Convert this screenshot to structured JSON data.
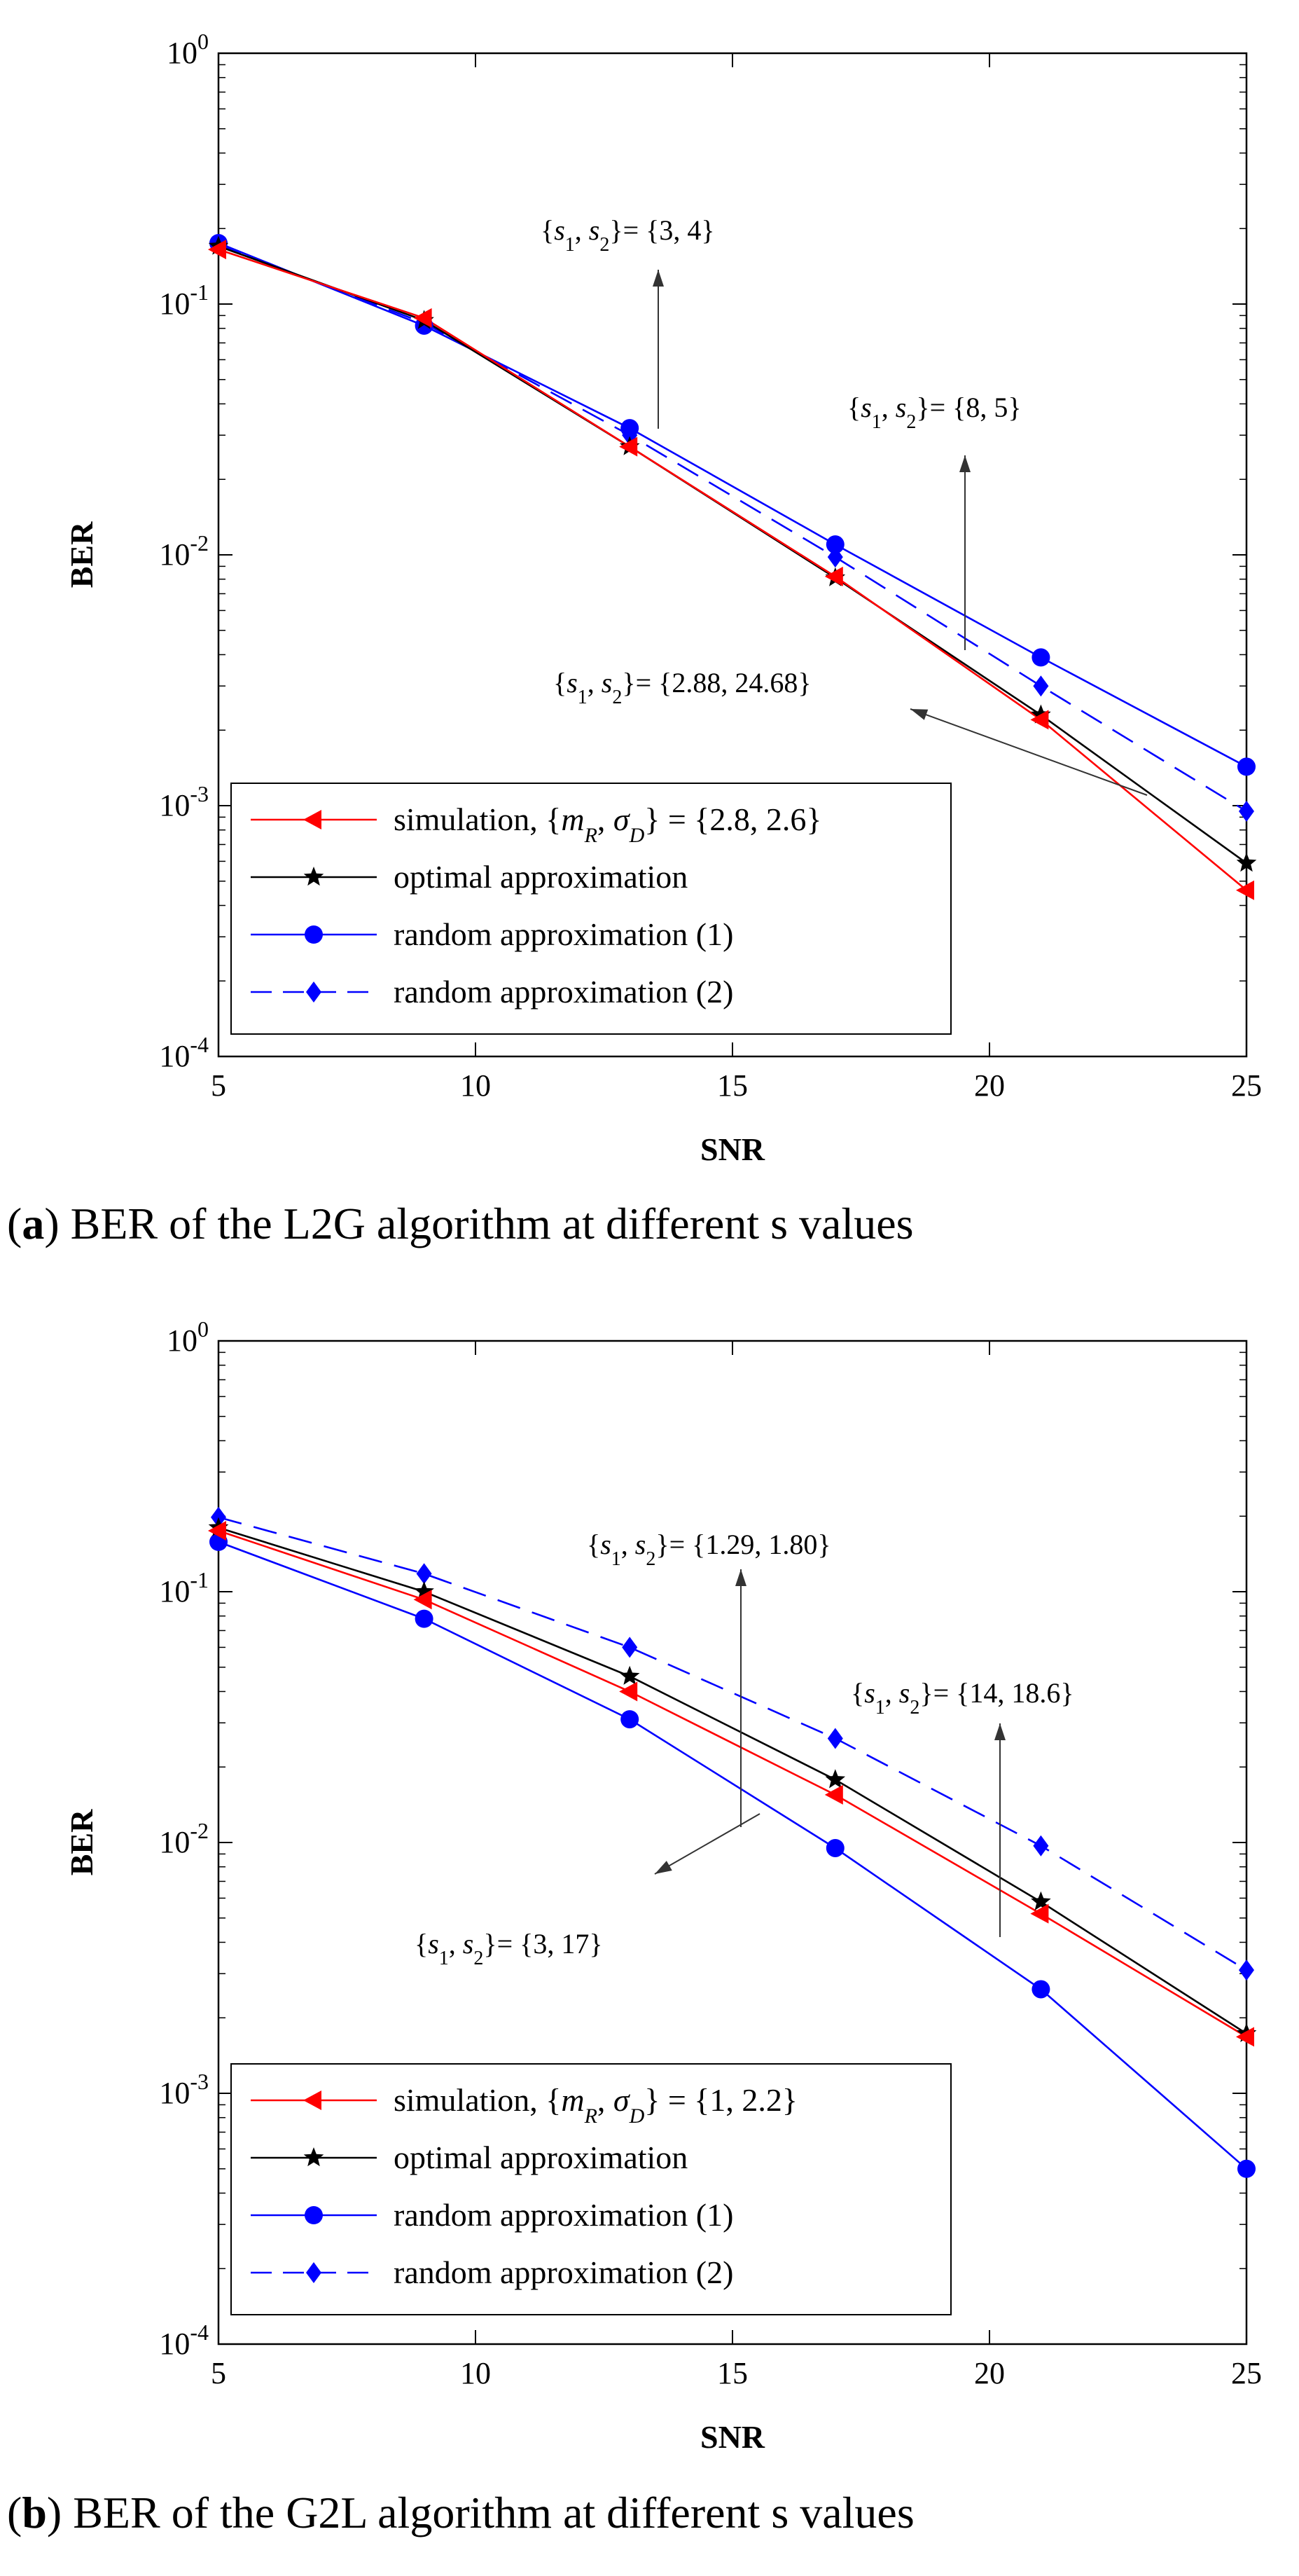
{
  "chart_data": [
    {
      "type": "line",
      "panel": "a",
      "caption_prefix": "a",
      "caption_text": "BER of the L2G algorithm at different s values",
      "xlabel": "SNR",
      "ylabel": "BER",
      "xlim": [
        5,
        25
      ],
      "ylim": [
        0.0001,
        1
      ],
      "yscale": "log",
      "xticks": [
        5,
        10,
        15,
        20,
        25
      ],
      "x": [
        5,
        9,
        13,
        17,
        21,
        25
      ],
      "series": [
        {
          "name": "simulation",
          "legend_math": "{mR, σD} = {2.8, 2.6}",
          "color": "#ff0000",
          "marker": "triangle-left",
          "dash": "solid",
          "values": [
            0.165,
            0.088,
            0.027,
            0.0082,
            0.0022,
            0.00046
          ]
        },
        {
          "name": "optimal approximation",
          "color": "#000000",
          "marker": "star",
          "dash": "solid",
          "values": [
            0.17,
            0.086,
            0.027,
            0.0081,
            0.0023,
            0.00059
          ]
        },
        {
          "name": "random approximation (1)",
          "color": "#0000ff",
          "marker": "circle",
          "dash": "solid",
          "values": [
            0.175,
            0.082,
            0.032,
            0.011,
            0.0039,
            0.00143
          ]
        },
        {
          "name": "random approximation (2)",
          "color": "#0000ff",
          "marker": "diamond",
          "dash": "dashed",
          "values": [
            0.172,
            0.084,
            0.03,
            0.0098,
            0.003,
            0.00095
          ]
        }
      ],
      "annotations": [
        {
          "label": "= {3, 4}"
        },
        {
          "label": "= {8, 5}"
        },
        {
          "label": "= {2.88, 24.68}"
        }
      ]
    },
    {
      "type": "line",
      "panel": "b",
      "caption_prefix": "b",
      "caption_text": "BER of the G2L algorithm at different s values",
      "xlabel": "SNR",
      "ylabel": "BER",
      "xlim": [
        5,
        25
      ],
      "ylim": [
        0.0001,
        1
      ],
      "yscale": "log",
      "xticks": [
        5,
        10,
        15,
        20,
        25
      ],
      "x": [
        5,
        9,
        13,
        17,
        21,
        25
      ],
      "series": [
        {
          "name": "simulation",
          "legend_math": "{mR, σD} = {1, 2.2}",
          "color": "#ff0000",
          "marker": "triangle-left",
          "dash": "solid",
          "values": [
            0.175,
            0.093,
            0.04,
            0.0155,
            0.0052,
            0.00168
          ]
        },
        {
          "name": "optimal approximation",
          "color": "#000000",
          "marker": "star",
          "dash": "solid",
          "values": [
            0.18,
            0.1,
            0.046,
            0.0178,
            0.0058,
            0.00173
          ]
        },
        {
          "name": "random approximation (1)",
          "color": "#0000ff",
          "marker": "circle",
          "dash": "solid",
          "values": [
            0.158,
            0.078,
            0.031,
            0.0095,
            0.0026,
            0.0005
          ]
        },
        {
          "name": "random approximation (2)",
          "color": "#0000ff",
          "marker": "diamond",
          "dash": "dashed",
          "values": [
            0.198,
            0.118,
            0.06,
            0.026,
            0.0097,
            0.0031
          ]
        }
      ],
      "annotations": [
        {
          "label": "= {1.29, 1.80}"
        },
        {
          "label": "= {14, 18.6}"
        },
        {
          "label": "= {3, 17}"
        }
      ]
    }
  ]
}
